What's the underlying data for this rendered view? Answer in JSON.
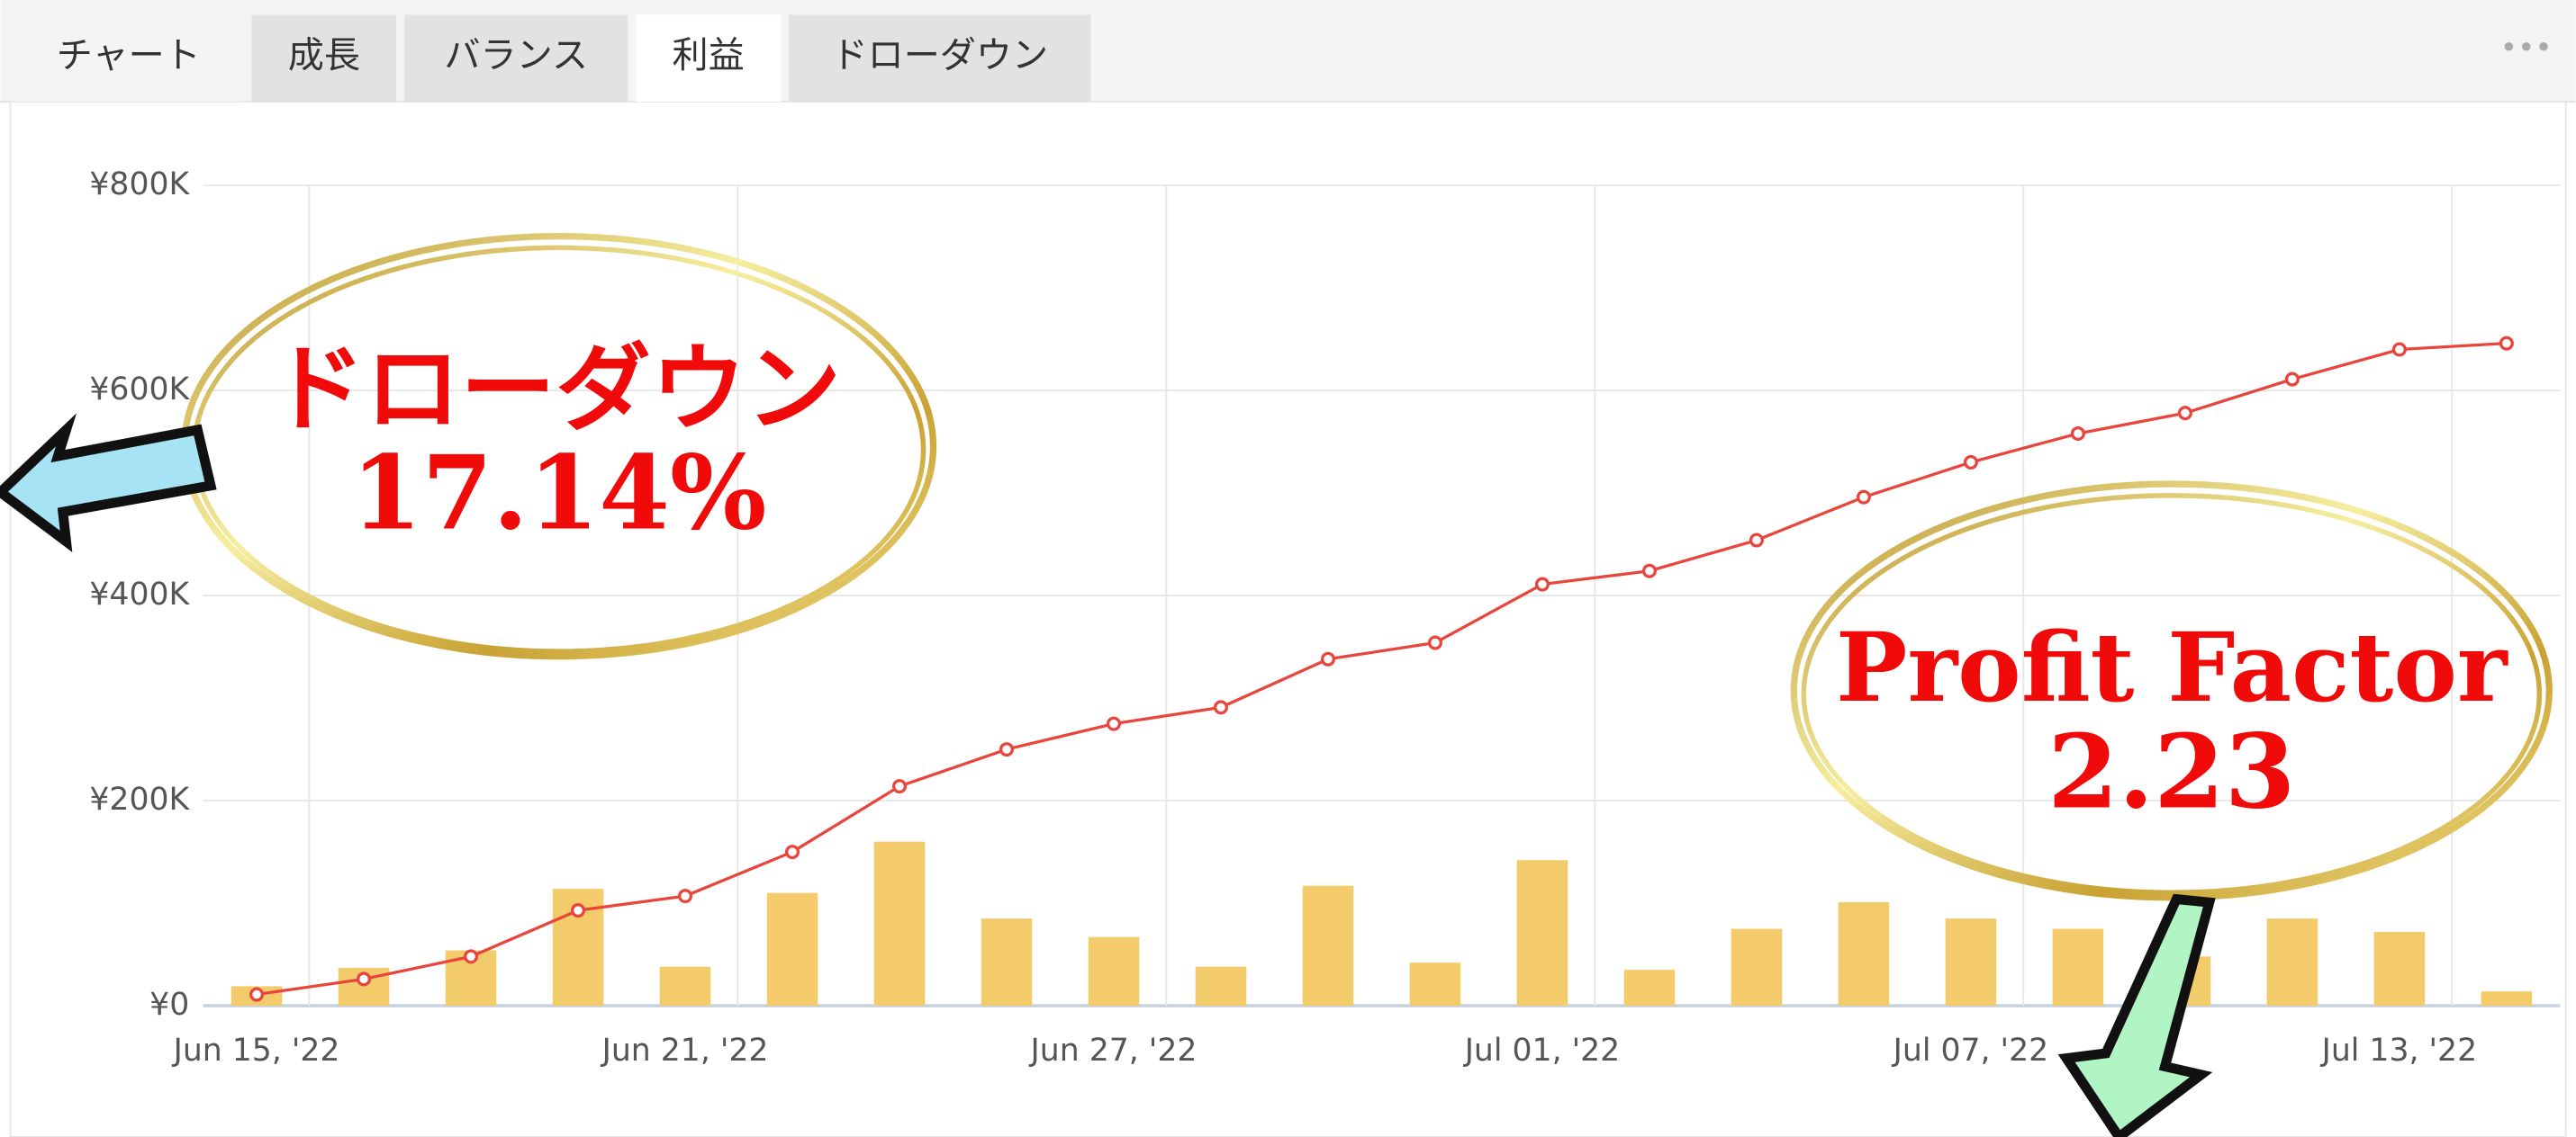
{
  "tabs": [
    {
      "label": "チャート"
    },
    {
      "label": "成長"
    },
    {
      "label": "バランス"
    },
    {
      "label": "利益",
      "active": true
    },
    {
      "label": "ドローダウン"
    }
  ],
  "chart_data": {
    "type": "bar_line",
    "categories": [
      "Jun 15, '22",
      null,
      null,
      null,
      "Jun 21, '22",
      null,
      null,
      null,
      "Jun 27, '22",
      null,
      null,
      null,
      "Jul 01, '22",
      null,
      null,
      null,
      "Jul 07, '22",
      null,
      null,
      null,
      "Jul 13, '22",
      null
    ],
    "series": [
      {
        "type": "bar",
        "color": "#f4cb6b",
        "values": [
          19000,
          37000,
          54000,
          114000,
          38000,
          110000,
          160000,
          85000,
          67000,
          38000,
          117000,
          42000,
          142000,
          35000,
          75000,
          101000,
          85000,
          75000,
          48000,
          85000,
          72000,
          14000
        ]
      },
      {
        "type": "line",
        "color": "#e8463c",
        "values": [
          11000,
          26000,
          48000,
          93000,
          107000,
          150000,
          214000,
          250000,
          275000,
          291000,
          338000,
          354000,
          411000,
          424000,
          454000,
          496000,
          530000,
          558000,
          578000,
          611000,
          640000,
          646000
        ]
      }
    ],
    "ylim": [
      0,
      800000
    ],
    "yticks": [
      {
        "value": 0,
        "label": "¥0"
      },
      {
        "value": 200000,
        "label": "¥200K"
      },
      {
        "value": 400000,
        "label": "¥400K"
      },
      {
        "value": 600000,
        "label": "¥600K"
      },
      {
        "value": 800000,
        "label": "¥800K"
      }
    ],
    "grid": true,
    "annotations": [
      {
        "lines": [
          "ドローダウン",
          "17.14%"
        ]
      },
      {
        "lines": [
          "Profit Factor",
          "2.23"
        ]
      }
    ]
  }
}
